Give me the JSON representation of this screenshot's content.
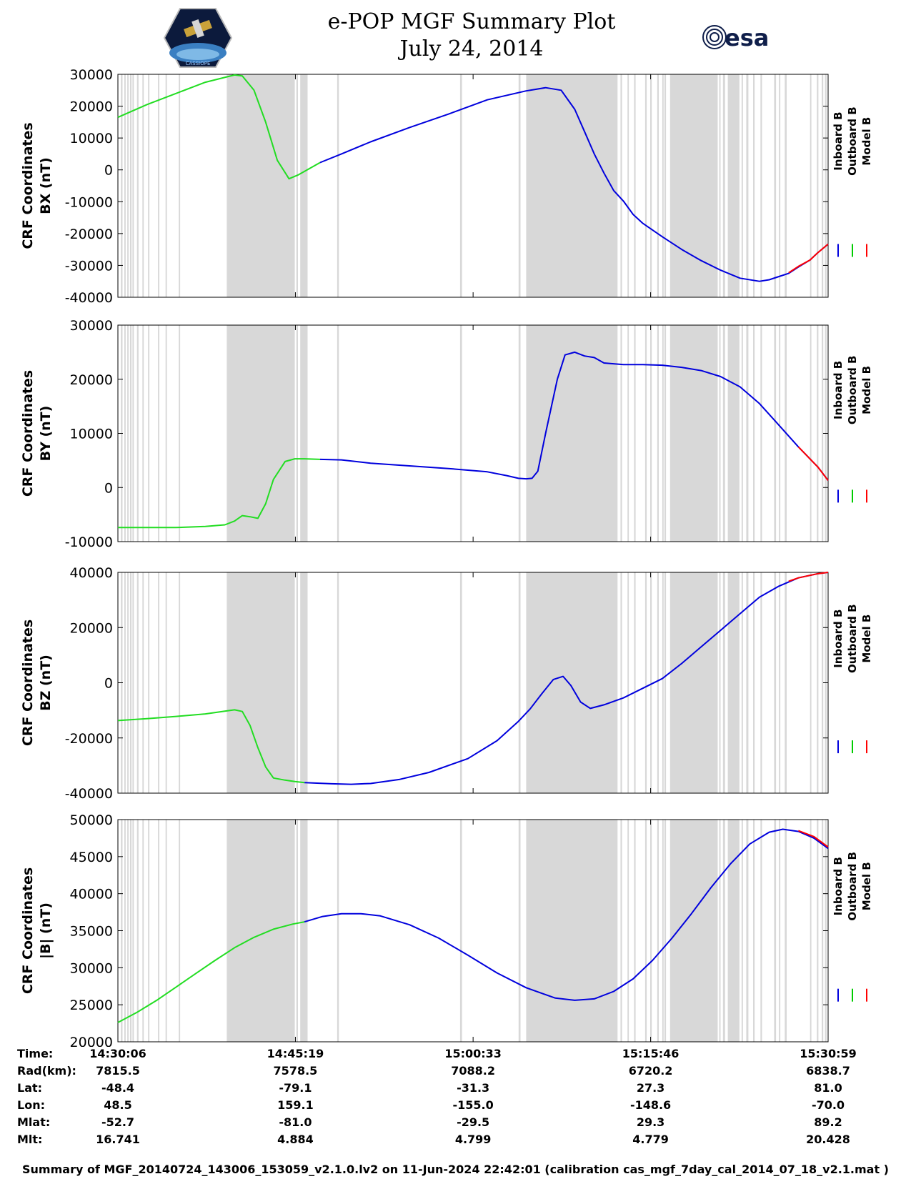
{
  "header": {
    "title_line1": "e-POP MGF Summary Plot",
    "title_line2": "July 24, 2014",
    "logo_left_text": "CASSIOPE",
    "logo_right_text": "esa"
  },
  "legend": [
    {
      "label": "Inboard B",
      "color": "#0000dd"
    },
    {
      "label": "Outboard B",
      "color": "#00cc00"
    },
    {
      "label": "Model B",
      "color": "#ff0000"
    }
  ],
  "colors": {
    "inboard": "#0000dd",
    "outboard": "#22dd22",
    "model": "#ff0000",
    "gap": "#d8d8d8"
  },
  "time_axis": {
    "range_seconds": [
      0,
      3653
    ],
    "tick_seconds": [
      0,
      913,
      1827,
      2740,
      3653
    ],
    "gap_bands_seconds": [
      [
        15,
        24
      ],
      [
        33,
        40
      ],
      [
        48,
        55
      ],
      [
        62,
        70
      ],
      [
        75,
        82
      ],
      [
        98,
        106
      ],
      [
        126,
        133
      ],
      [
        155,
        162
      ],
      [
        206,
        213
      ],
      [
        245,
        252
      ],
      [
        313,
        320
      ],
      [
        560,
        910
      ],
      [
        918,
        926
      ],
      [
        938,
        976
      ],
      [
        1128,
        1137
      ],
      [
        1760,
        1770
      ],
      [
        2061,
        2071
      ],
      [
        2100,
        2570
      ],
      [
        2585,
        2593
      ],
      [
        2621,
        2628
      ],
      [
        2655,
        2663
      ],
      [
        2712,
        2720
      ],
      [
        2738,
        2746
      ],
      [
        2774,
        2782
      ],
      [
        2800,
        2807
      ],
      [
        2811,
        2819
      ],
      [
        2840,
        3085
      ],
      [
        3093,
        3100
      ],
      [
        3112,
        3123
      ],
      [
        3137,
        3197
      ],
      [
        3208,
        3215
      ],
      [
        3232,
        3243
      ],
      [
        3267,
        3275
      ],
      [
        3305,
        3313
      ],
      [
        3375,
        3385
      ],
      [
        3400,
        3407
      ],
      [
        3430,
        3440
      ],
      [
        3560,
        3567
      ],
      [
        3595,
        3603
      ],
      [
        3620,
        3628
      ],
      [
        3637,
        3645
      ]
    ]
  },
  "chart_data": [
    {
      "type": "line",
      "title": "",
      "ylabel_line1": "CRF Coordinates",
      "ylabel_line2": "BX (nT)",
      "ylim": [
        -40000,
        30000
      ],
      "yticks": [
        30000,
        20000,
        10000,
        0,
        -10000,
        -20000,
        -30000,
        -40000
      ],
      "ytick_labels": [
        "30000",
        "20000",
        "10000",
        "0",
        "-10000",
        "-20000",
        "-30000",
        "-40000"
      ],
      "series": [
        {
          "name": "Outboard B",
          "x": [
            0,
            150,
            300,
            450,
            600,
            640,
            700,
            760,
            820,
            880,
            930,
            1040
          ],
          "values": [
            16500,
            20500,
            24000,
            27500,
            29800,
            29500,
            25000,
            15000,
            3000,
            -2800,
            -1500,
            2300
          ]
        },
        {
          "name": "Inboard B",
          "x": [
            1040,
            1150,
            1300,
            1500,
            1700,
            1900,
            2100,
            2200,
            2280,
            2350,
            2400,
            2450,
            2500,
            2550,
            2600,
            2650,
            2700,
            2800,
            2900,
            3000,
            3100,
            3200,
            3300,
            3350,
            3400,
            3450,
            3500,
            3560,
            3600,
            3653
          ],
          "values": [
            2300,
            5000,
            8800,
            13300,
            17500,
            22000,
            24800,
            25800,
            25000,
            19000,
            12000,
            5000,
            -1000,
            -6500,
            -9800,
            -14000,
            -16800,
            -21000,
            -25000,
            -28500,
            -31500,
            -34000,
            -35000,
            -34500,
            -33500,
            -32500,
            -30500,
            -28300,
            -26000,
            -23300
          ]
        },
        {
          "name": "Model B",
          "x": [
            3450,
            3500,
            3560,
            3600,
            3653
          ],
          "values": [
            -32300,
            -30300,
            -28300,
            -26000,
            -23300
          ]
        }
      ]
    },
    {
      "type": "line",
      "title": "",
      "ylabel_line1": "CRF Coordinates",
      "ylabel_line2": "BY (nT)",
      "ylim": [
        -10000,
        30000
      ],
      "yticks": [
        30000,
        20000,
        10000,
        0,
        -10000
      ],
      "ytick_labels": [
        "30000",
        "20000",
        "10000",
        "0",
        "-10000"
      ],
      "series": [
        {
          "name": "Outboard B",
          "x": [
            0,
            150,
            300,
            450,
            550,
            600,
            640,
            680,
            720,
            760,
            800,
            860,
            910,
            960,
            1040
          ],
          "values": [
            -7400,
            -7400,
            -7400,
            -7200,
            -6900,
            -6200,
            -5200,
            -5400,
            -5700,
            -3000,
            1500,
            4800,
            5300,
            5300,
            5200
          ]
        },
        {
          "name": "Inboard B",
          "x": [
            1040,
            1150,
            1300,
            1500,
            1700,
            1900,
            2000,
            2060,
            2100,
            2130,
            2160,
            2200,
            2260,
            2300,
            2350,
            2400,
            2450,
            2500,
            2600,
            2700,
            2800,
            2900,
            3000,
            3100,
            3200,
            3300,
            3400,
            3500,
            3600,
            3653
          ],
          "values": [
            5200,
            5100,
            4500,
            4000,
            3500,
            2900,
            2200,
            1700,
            1600,
            1700,
            3000,
            10000,
            20000,
            24500,
            25000,
            24300,
            24000,
            23000,
            22700,
            22700,
            22600,
            22200,
            21600,
            20500,
            18600,
            15500,
            11500,
            7500,
            3800,
            1300
          ]
        },
        {
          "name": "Model B",
          "x": [
            3500,
            3600,
            3653
          ],
          "values": [
            7500,
            3800,
            1300
          ]
        }
      ]
    },
    {
      "type": "line",
      "title": "",
      "ylabel_line1": "CRF Coordinates",
      "ylabel_line2": "BZ (nT)",
      "ylim": [
        -40000,
        40000
      ],
      "yticks": [
        40000,
        20000,
        0,
        -20000,
        -40000
      ],
      "ytick_labels": [
        "40000",
        "20000",
        "0",
        "-20000",
        "-40000"
      ],
      "series": [
        {
          "name": "Outboard B",
          "x": [
            0,
            150,
            300,
            450,
            550,
            600,
            640,
            680,
            720,
            760,
            800,
            860,
            910,
            960
          ],
          "values": [
            -13700,
            -13000,
            -12200,
            -11300,
            -10300,
            -9800,
            -10400,
            -15500,
            -23500,
            -30500,
            -34500,
            -35300,
            -35800,
            -36200
          ]
        },
        {
          "name": "Inboard B",
          "x": [
            960,
            1100,
            1200,
            1300,
            1450,
            1600,
            1800,
            1950,
            2060,
            2120,
            2180,
            2240,
            2290,
            2330,
            2380,
            2430,
            2500,
            2600,
            2700,
            2800,
            2900,
            3000,
            3100,
            3200,
            3300,
            3400,
            3500,
            3600,
            3653
          ],
          "values": [
            -36200,
            -36600,
            -36800,
            -36500,
            -35000,
            -32500,
            -27500,
            -21000,
            -14000,
            -9500,
            -4000,
            1200,
            2300,
            -1000,
            -7000,
            -9300,
            -8000,
            -5500,
            -2000,
            1500,
            7000,
            13000,
            19000,
            25000,
            31000,
            35000,
            38000,
            39500,
            40000
          ]
        },
        {
          "name": "Model B",
          "x": [
            3450,
            3500,
            3600,
            3653
          ],
          "values": [
            36800,
            38000,
            39500,
            40000
          ]
        }
      ]
    },
    {
      "type": "line",
      "title": "",
      "ylabel_line1": "CRF Coordinates",
      "ylabel_line2": "|B| (nT)",
      "ylim": [
        20000,
        50000
      ],
      "yticks": [
        50000,
        45000,
        40000,
        35000,
        30000,
        25000,
        20000
      ],
      "ytick_labels": [
        "50000",
        "45000",
        "40000",
        "35000",
        "30000",
        "25000",
        "20000"
      ],
      "series": [
        {
          "name": "Outboard B",
          "x": [
            0,
            100,
            200,
            300,
            400,
            500,
            600,
            700,
            800,
            900,
            960
          ],
          "values": [
            22600,
            24000,
            25600,
            27400,
            29200,
            31000,
            32700,
            34100,
            35200,
            35900,
            36200
          ]
        },
        {
          "name": "Inboard B",
          "x": [
            960,
            1050,
            1150,
            1250,
            1350,
            1500,
            1650,
            1800,
            1950,
            2100,
            2250,
            2350,
            2450,
            2550,
            2650,
            2750,
            2850,
            2950,
            3050,
            3150,
            3250,
            3350,
            3420,
            3500,
            3580,
            3653
          ],
          "values": [
            36200,
            36900,
            37300,
            37300,
            37000,
            35800,
            34000,
            31700,
            29300,
            27300,
            25900,
            25600,
            25800,
            26800,
            28500,
            31000,
            34000,
            37300,
            40800,
            44000,
            46700,
            48300,
            48700,
            48400,
            47500,
            46100
          ]
        },
        {
          "name": "Model B",
          "x": [
            3500,
            3580,
            3653
          ],
          "values": [
            48500,
            47700,
            46300
          ]
        }
      ]
    }
  ],
  "info_table": {
    "headers": [
      "Time:",
      "Rad(km):",
      "Lat:",
      "Lon:",
      "Mlat:",
      "Mlt:"
    ],
    "columns": [
      [
        "14:30:06",
        "7815.5",
        "-48.4",
        "48.5",
        "-52.7",
        "16.741"
      ],
      [
        "14:45:19",
        "7578.5",
        "-79.1",
        "159.1",
        "-81.0",
        "4.884"
      ],
      [
        "15:00:33",
        "7088.2",
        "-31.3",
        "-155.0",
        "-29.5",
        "4.799"
      ],
      [
        "15:15:46",
        "6720.2",
        "27.3",
        "-148.6",
        "29.3",
        "4.779"
      ],
      [
        "15:30:59",
        "6838.7",
        "81.0",
        "-70.0",
        "89.2",
        "20.428"
      ]
    ]
  },
  "footer": "Summary of MGF_20140724_143006_153059_v2.1.0.lv2 on 11-Jun-2024 22:42:01 (calibration cas_mgf_7day_cal_2014_07_18_v2.1.mat )"
}
